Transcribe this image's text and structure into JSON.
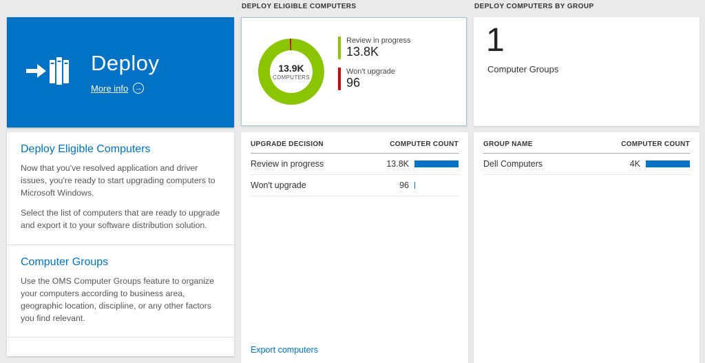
{
  "app": {
    "accent": "#0072c6",
    "background": "#eaeaea"
  },
  "left_column": {
    "tile": {
      "title": "Deploy",
      "more_info_label": "More info"
    },
    "sections": [
      {
        "heading": "Deploy Eligible Computers",
        "paragraphs": [
          "Now that you've resolved application and driver issues, you're ready to start upgrading computers to Microsoft Windows.",
          "Select the list of computers that are ready to upgrade and export it to your software distribution solution."
        ]
      },
      {
        "heading": "Computer Groups",
        "paragraphs": [
          "Use the OMS Computer Groups feature to organize your computers according to business area, geographic location, discipline, or any other factors you find relevant."
        ]
      }
    ]
  },
  "middle_column": {
    "header": "DEPLOY ELIGIBLE COMPUTERS",
    "donut": {
      "center_value": "13.9K",
      "center_label": "COMPUTERS",
      "split_pct": 99.3,
      "legend": [
        {
          "label": "Review in progress",
          "value": "13.8K",
          "color": "#8bc400"
        },
        {
          "label": "Won't upgrade",
          "value": "96",
          "color": "#d40000"
        }
      ]
    },
    "table": {
      "col1": "UPGRADE DECISION",
      "col2": "COMPUTER COUNT",
      "rows": [
        {
          "label": "Review in progress",
          "value": "13.8K",
          "bar_pct": 100,
          "bar_color": "#0072c6"
        },
        {
          "label": "Won't upgrade",
          "value": "96",
          "bar_pct": 2,
          "bar_color": "#0072c6"
        }
      ]
    },
    "export_link": "Export computers"
  },
  "right_column": {
    "header": "DEPLOY COMPUTERS BY GROUP",
    "summary_count": "1",
    "summary_label": "Computer Groups",
    "table": {
      "col1": "GROUP NAME",
      "col2": "COMPUTER COUNT",
      "rows": [
        {
          "label": "Dell Computers",
          "value": "4K",
          "bar_pct": 100,
          "bar_color": "#0072c6"
        }
      ]
    }
  }
}
